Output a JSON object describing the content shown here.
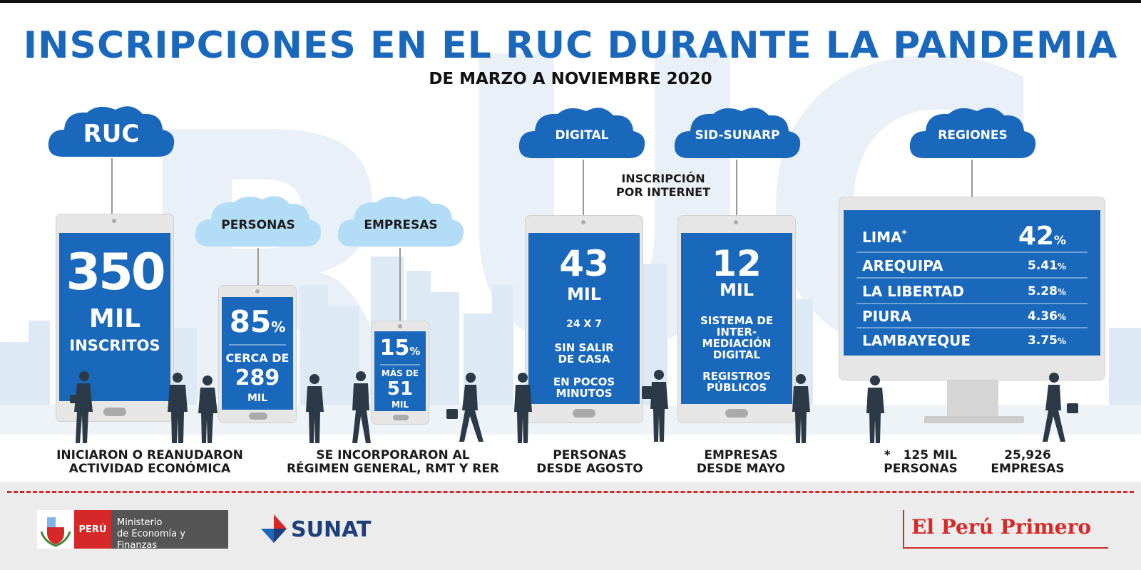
{
  "title": "INSCRIPCIONES EN EL RUC DURANTE LA PANDEMIA",
  "subtitle": "DE MARZO A NOVIEMBRE 2020",
  "background_letters": [
    "R",
    "U",
    "C"
  ],
  "colors": {
    "brand_blue": "#1a68bb",
    "light_cloud": "#b3dcf6",
    "red": "#d62828"
  },
  "ruc": {
    "cloud_label": "RUC",
    "value": "350",
    "unit": "MIL",
    "label": "INSCRITOS",
    "caption_line1": "INICIARON O REANUDARON",
    "caption_line2": "ACTIVIDAD ECONÓMICA"
  },
  "personas": {
    "cloud_label": "PERSONAS",
    "percent": "85",
    "percent_sign": "%",
    "line1": "CERCA DE",
    "value": "289",
    "unit": "MIL"
  },
  "empresas": {
    "cloud_label": "EMPRESAS",
    "percent": "15",
    "percent_sign": "%",
    "line1": "MÁS DE",
    "value": "51",
    "unit": "MIL",
    "caption_line1": "SE INCORPORARON AL",
    "caption_line2": "RÉGIMEN GENERAL, RMT Y RER"
  },
  "internet_label_line1": "INSCRIPCIÓN",
  "internet_label_line2": "POR INTERNET",
  "digital": {
    "cloud_label": "DIGITAL",
    "value": "43",
    "unit": "MIL",
    "line1": "24 X 7",
    "line2": "SIN SALIR",
    "line3": "DE CASA",
    "line4": "EN POCOS",
    "line5": "MINUTOS",
    "caption_line1": "PERSONAS",
    "caption_line2": "DESDE AGOSTO"
  },
  "sid": {
    "cloud_label": "SID-SUNARP",
    "value": "12",
    "unit": "MIL",
    "line1": "SISTEMA DE",
    "line2": "INTER-",
    "line3": "MEDIACIÓN",
    "line4": "DIGITAL",
    "line5": "REGISTROS",
    "line6": "PÚBLICOS",
    "caption_line1": "EMPRESAS",
    "caption_line2": "DESDE MAYO"
  },
  "regiones": {
    "cloud_label": "REGIONES",
    "rows": [
      {
        "name": "LIMA",
        "note": "*",
        "pct": "42",
        "sign": "%"
      },
      {
        "name": "AREQUIPA",
        "pct": "5.41",
        "sign": "%"
      },
      {
        "name": "LA LIBERTAD",
        "pct": "5.28",
        "sign": "%"
      },
      {
        "name": "PIURA",
        "pct": "4.36",
        "sign": "%"
      },
      {
        "name": "LAMBAYEQUE",
        "pct": "3.75",
        "sign": "%"
      }
    ],
    "footnote_mark": "*",
    "footnote_personas_value": "125 MIL",
    "footnote_personas_label": "PERSONAS",
    "footnote_empresas_value": "25,926",
    "footnote_empresas_label": "EMPRESAS"
  },
  "footer": {
    "mef_country": "PERÚ",
    "mef_line1": "Ministerio",
    "mef_line2": "de Economía y Finanzas",
    "sunat": "SUNAT",
    "slogan": "El Perú Primero"
  }
}
